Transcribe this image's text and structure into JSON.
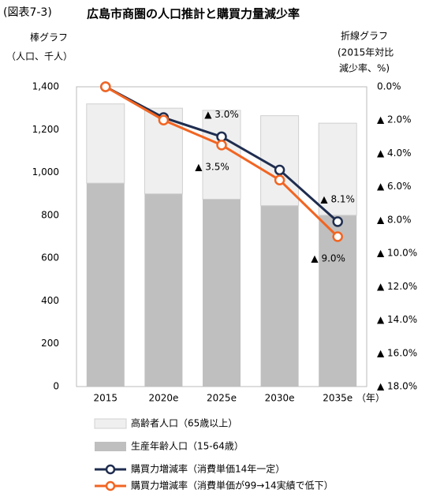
{
  "chart_data": {
    "type": "bar",
    "figure_label": "(図表7-3)",
    "title": "広島市商圏の人口推計と購買力量減少率",
    "y_label": "棒グラフ",
    "y_label_unit": "（人口、千人）",
    "y2_label": [
      "折線グラフ",
      "(2015年対比",
      "減少率、%)"
    ],
    "x_unit": "（年）",
    "categories": [
      "2015",
      "2020e",
      "2025e",
      "2030e",
      "2035e"
    ],
    "ylim": [
      0,
      1400
    ],
    "yticks": [
      0,
      200,
      400,
      600,
      800,
      {
        "value": 1000,
        "label": "1,000"
      },
      {
        "value": 1200,
        "label": "1,200"
      },
      {
        "value": 1400,
        "label": "1,400"
      }
    ],
    "y2lim": [
      -18,
      0
    ],
    "y2ticks": [
      {
        "value": 0,
        "label": "0.0%"
      },
      {
        "value": -2,
        "label": "▲ 2.0%"
      },
      {
        "value": -4,
        "label": "▲ 4.0%"
      },
      {
        "value": -6,
        "label": "▲ 6.0%"
      },
      {
        "value": -8,
        "label": "▲ 8.0%"
      },
      {
        "value": -10,
        "label": "▲ 10.0%"
      },
      {
        "value": -12,
        "label": "▲ 12.0%"
      },
      {
        "value": -14,
        "label": "▲ 14.0%"
      },
      {
        "value": -16,
        "label": "▲ 16.0%"
      },
      {
        "value": -18,
        "label": "▲ 18.0%"
      }
    ],
    "series": [
      {
        "name": "高齢者人口（65歳以上）",
        "type": "bar",
        "color": "#efefef",
        "values": [
          370,
          400,
          415,
          420,
          430
        ]
      },
      {
        "name": "生産年齢人口（15-64歳）",
        "type": "bar",
        "color": "#bfbfbf",
        "values": [
          950,
          900,
          875,
          845,
          800
        ]
      },
      {
        "name": "購買力増減率（消費単価14年一定）",
        "type": "line",
        "axis": "y2",
        "color": "#1f2d4f",
        "values": [
          0,
          -1.85,
          -3.0,
          -5.0,
          -8.1
        ],
        "value_labels": [
          null,
          null,
          "▲ 3.0%",
          null,
          "▲ 8.1%"
        ]
      },
      {
        "name": "購買力増減率（消費単価が99→14実績で低下）",
        "type": "line",
        "axis": "y2",
        "color": "#f26522",
        "values": [
          0,
          -2.0,
          -3.5,
          -5.6,
          -9.0
        ],
        "value_labels": [
          null,
          null,
          "▲ 3.5%",
          null,
          "▲ 9.0%"
        ]
      }
    ]
  }
}
